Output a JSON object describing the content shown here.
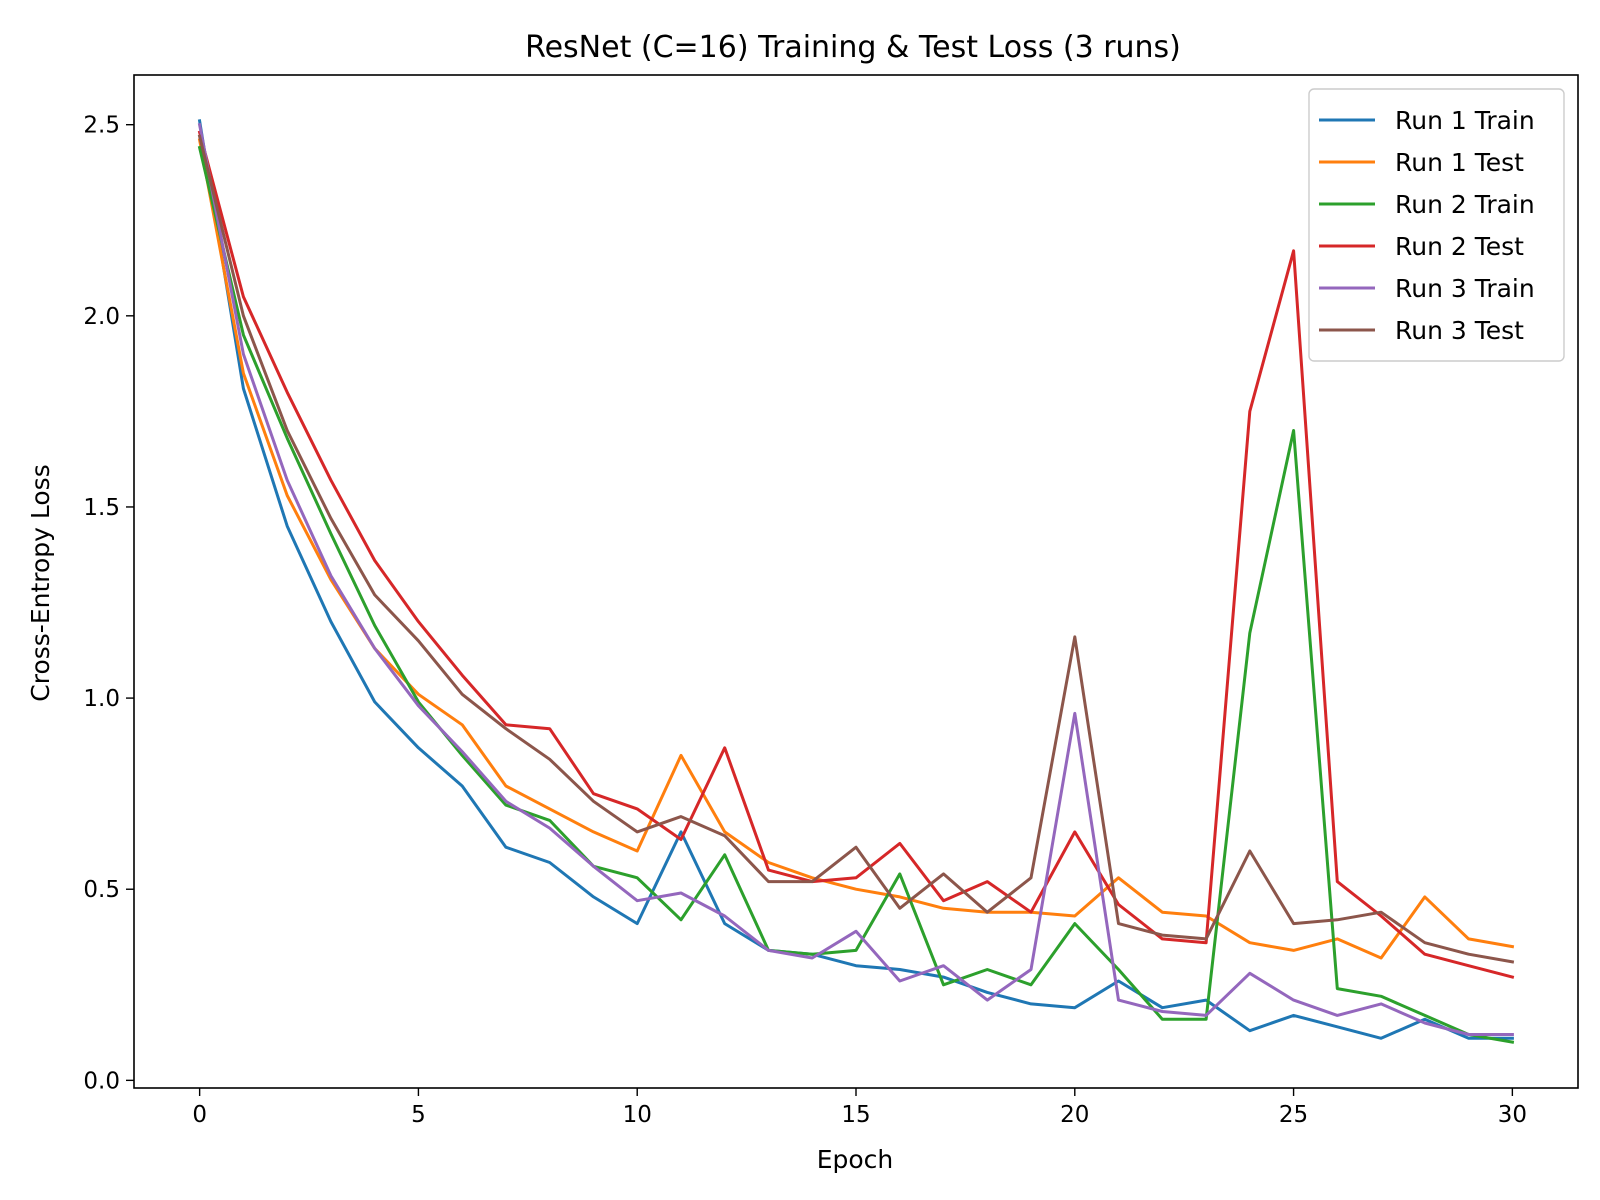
{
  "chart_data": {
    "type": "line",
    "title": "ResNet (C=16) Training & Test Loss (3 runs)",
    "xlabel": "Epoch",
    "ylabel": "Cross-Entropy Loss",
    "xlim": [
      -1.5,
      31.5
    ],
    "ylim": [
      -0.02,
      2.63
    ],
    "xticks": [
      0,
      5,
      10,
      15,
      20,
      25,
      30
    ],
    "yticks": [
      0.0,
      0.5,
      1.0,
      1.5,
      2.0,
      2.5
    ],
    "xtick_labels": [
      "0",
      "5",
      "10",
      "15",
      "20",
      "25",
      "30"
    ],
    "ytick_labels": [
      "0.0",
      "0.5",
      "1.0",
      "1.5",
      "2.0",
      "2.5"
    ],
    "grid": false,
    "legend_position": "top-right",
    "x": [
      0,
      1,
      2,
      3,
      4,
      5,
      6,
      7,
      8,
      9,
      10,
      11,
      12,
      13,
      14,
      15,
      16,
      17,
      18,
      19,
      20,
      21,
      22,
      23,
      24,
      25,
      26,
      27,
      28,
      29,
      30
    ],
    "series": [
      {
        "name": "Run 1 Train",
        "color": "#1f77b4",
        "values": [
          2.51,
          1.81,
          1.45,
          1.2,
          0.99,
          0.87,
          0.77,
          0.61,
          0.57,
          0.48,
          0.41,
          0.65,
          0.41,
          0.34,
          0.33,
          0.3,
          0.29,
          0.27,
          0.23,
          0.2,
          0.19,
          0.26,
          0.19,
          0.21,
          0.13,
          0.17,
          0.14,
          0.11,
          0.16,
          0.11,
          0.11
        ]
      },
      {
        "name": "Run 1 Test",
        "color": "#ff7f0e",
        "values": [
          2.46,
          1.85,
          1.53,
          1.31,
          1.13,
          1.01,
          0.93,
          0.77,
          0.71,
          0.65,
          0.6,
          0.85,
          0.65,
          0.57,
          0.53,
          0.5,
          0.48,
          0.45,
          0.44,
          0.44,
          0.43,
          0.53,
          0.44,
          0.43,
          0.36,
          0.34,
          0.37,
          0.32,
          0.48,
          0.37,
          0.35
        ]
      },
      {
        "name": "Run 2 Train",
        "color": "#2ca02c",
        "values": [
          2.44,
          1.95,
          1.68,
          1.43,
          1.19,
          0.99,
          0.85,
          0.72,
          0.68,
          0.56,
          0.53,
          0.42,
          0.59,
          0.34,
          0.33,
          0.34,
          0.54,
          0.25,
          0.29,
          0.25,
          0.41,
          0.29,
          0.16,
          0.16,
          1.17,
          1.7,
          0.24,
          0.22,
          0.17,
          0.12,
          0.1
        ]
      },
      {
        "name": "Run 2 Test",
        "color": "#d62728",
        "values": [
          2.48,
          2.05,
          1.8,
          1.57,
          1.36,
          1.2,
          1.06,
          0.93,
          0.92,
          0.75,
          0.71,
          0.63,
          0.87,
          0.55,
          0.52,
          0.53,
          0.62,
          0.47,
          0.52,
          0.44,
          0.65,
          0.46,
          0.37,
          0.36,
          1.75,
          2.17,
          0.52,
          0.43,
          0.33,
          0.3,
          0.27
        ]
      },
      {
        "name": "Run 3 Train",
        "color": "#9467bd",
        "values": [
          2.5,
          1.9,
          1.57,
          1.32,
          1.13,
          0.98,
          0.86,
          0.73,
          0.66,
          0.56,
          0.47,
          0.49,
          0.43,
          0.34,
          0.32,
          0.39,
          0.26,
          0.3,
          0.21,
          0.29,
          0.96,
          0.21,
          0.18,
          0.17,
          0.28,
          0.21,
          0.17,
          0.2,
          0.15,
          0.12,
          0.12
        ]
      },
      {
        "name": "Run 3 Test",
        "color": "#8c564b",
        "values": [
          2.47,
          2.0,
          1.7,
          1.47,
          1.27,
          1.15,
          1.01,
          0.92,
          0.84,
          0.73,
          0.65,
          0.69,
          0.64,
          0.52,
          0.52,
          0.61,
          0.45,
          0.54,
          0.44,
          0.53,
          1.16,
          0.41,
          0.38,
          0.37,
          0.6,
          0.41,
          0.42,
          0.44,
          0.36,
          0.33,
          0.31
        ]
      }
    ]
  }
}
